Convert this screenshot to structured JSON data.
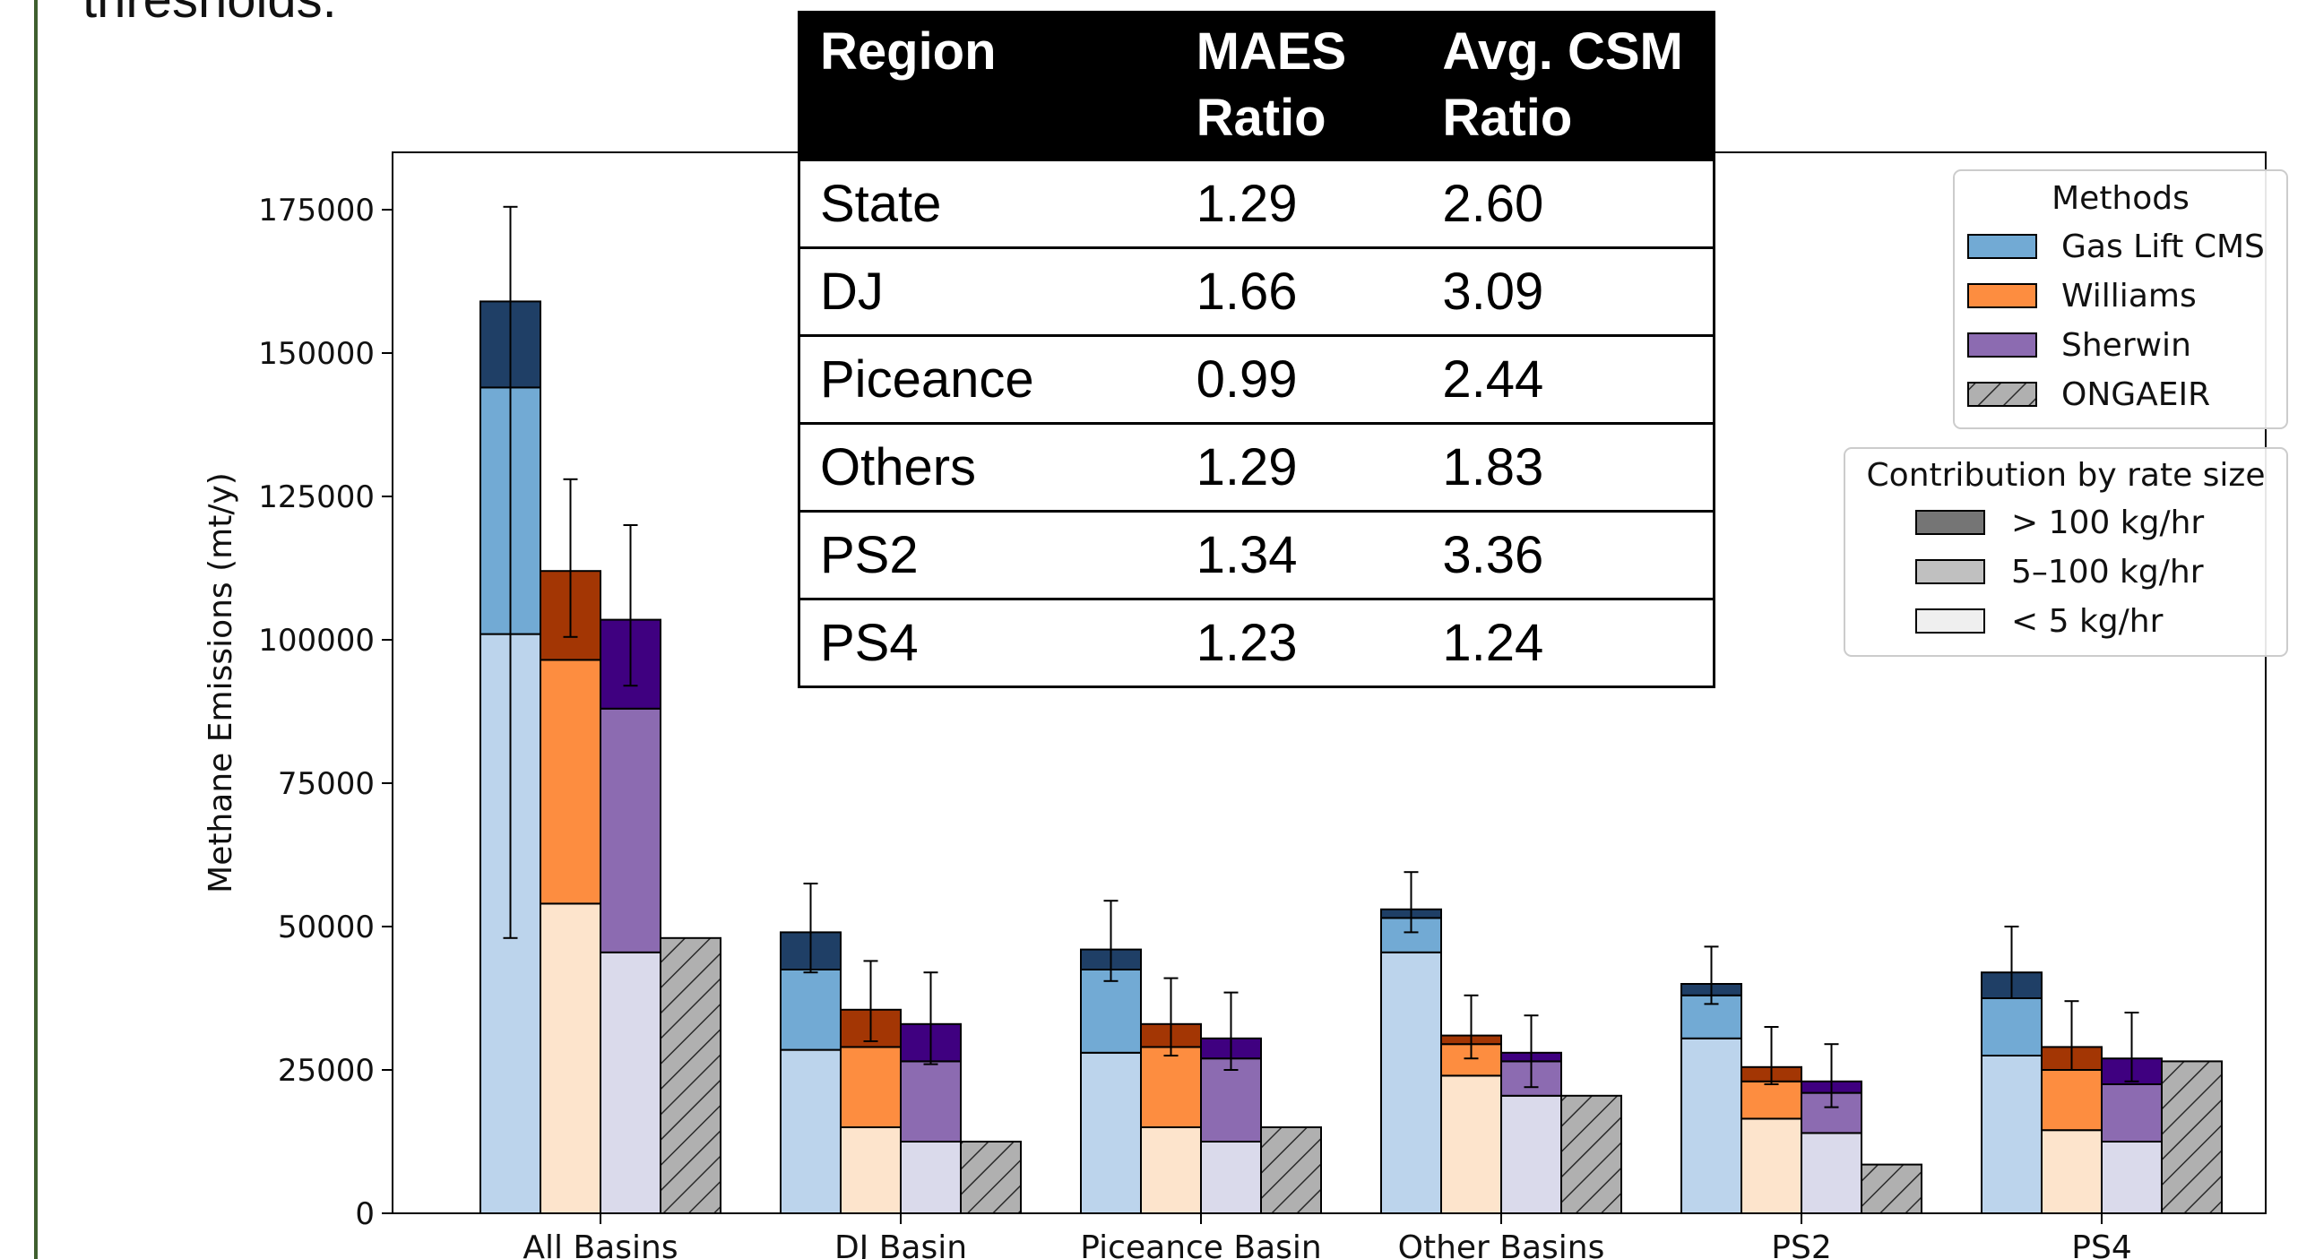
{
  "heading_fragment": "thresholds.",
  "table": {
    "headers": [
      {
        "line1": "Region",
        "line2": ""
      },
      {
        "line1": "MAES",
        "line2": "Ratio"
      },
      {
        "line1": "Avg. CSM",
        "line2": "Ratio"
      }
    ],
    "rows": [
      [
        "State",
        "1.29",
        "2.60"
      ],
      [
        "DJ",
        "1.66",
        "3.09"
      ],
      [
        "Piceance",
        "0.99",
        "2.44"
      ],
      [
        "Others",
        "1.29",
        "1.83"
      ],
      [
        "PS2",
        "1.34",
        "3.36"
      ],
      [
        "PS4",
        "1.23",
        "1.24"
      ]
    ]
  },
  "colors": {
    "gaslift": {
      "small": "#bcd4ec",
      "mid": "#72aad4",
      "large": "#1f3f66"
    },
    "williams": {
      "small": "#fde4cc",
      "mid": "#fd8d40",
      "large": "#a33604"
    },
    "sherwin": {
      "small": "#dadaeb",
      "mid": "#8c6bb1",
      "large": "#3f0080"
    },
    "ongaeir": "#b0b0b0",
    "legend_large": "#757575",
    "legend_mid": "#c0c0c0",
    "legend_small": "#efefef"
  },
  "chart_data": {
    "type": "bar",
    "stacked": true,
    "ylabel": "Methane Emissions (mt/y)",
    "ylim": [
      0,
      185000
    ],
    "yticks": [
      0,
      25000,
      50000,
      75000,
      100000,
      125000,
      150000,
      175000
    ],
    "categories": [
      "All Basins",
      "DJ Basin",
      "Piceance Basin",
      "Other Basins",
      "PS2",
      "PS4"
    ],
    "series": [
      {
        "name": "Gas Lift CMS",
        "key": "gaslift",
        "small": [
          101000,
          28500,
          28000,
          45500,
          30500,
          27500
        ],
        "mid": [
          43000,
          14000,
          14500,
          6000,
          7500,
          10000
        ],
        "large": [
          15000,
          6500,
          3500,
          1500,
          2000,
          4500
        ],
        "err_low": [
          48000,
          42000,
          40500,
          49000,
          36500,
          37500
        ],
        "err_high": [
          175500,
          57500,
          54500,
          59500,
          46500,
          50000
        ]
      },
      {
        "name": "Williams",
        "key": "williams",
        "small": [
          54000,
          15000,
          15000,
          24000,
          16500,
          14500
        ],
        "mid": [
          42500,
          14000,
          14000,
          5500,
          6500,
          10500
        ],
        "large": [
          15500,
          6500,
          4000,
          1500,
          2500,
          4000
        ],
        "err_low": [
          100500,
          30000,
          27500,
          27000,
          22500,
          25000
        ],
        "err_high": [
          128000,
          44000,
          41000,
          38000,
          32500,
          37000
        ]
      },
      {
        "name": "Sherwin",
        "key": "sherwin",
        "small": [
          45500,
          12500,
          12500,
          20500,
          14000,
          12500
        ],
        "mid": [
          42500,
          14000,
          14500,
          6000,
          7000,
          10000
        ],
        "large": [
          15500,
          6500,
          3500,
          1500,
          2000,
          4500
        ],
        "err_low": [
          92000,
          26000,
          25000,
          22000,
          18500,
          23000
        ],
        "err_high": [
          120000,
          42000,
          38500,
          34500,
          29500,
          35000
        ]
      },
      {
        "name": "ONGAEIR",
        "key": "ongaeir",
        "values": [
          48000,
          12500,
          15000,
          20500,
          8500,
          26500
        ]
      }
    ],
    "legend": {
      "placement": "top-right",
      "methods_title": "Methods",
      "methods": [
        "Gas Lift CMS",
        "Williams",
        "Sherwin",
        "ONGAEIR"
      ],
      "size_title": "Contribution by rate size",
      "sizes": [
        "> 100 kg/hr",
        "5–100 kg/hr",
        "< 5 kg/hr"
      ]
    }
  }
}
